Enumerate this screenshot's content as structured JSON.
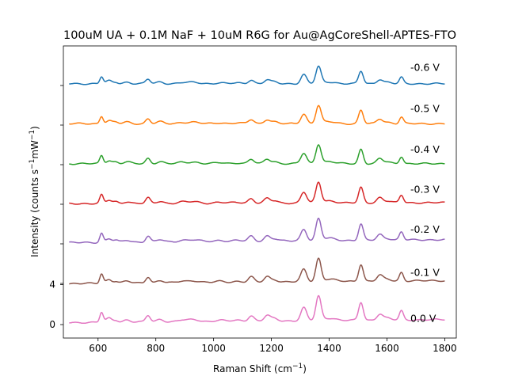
{
  "chart_data": {
    "type": "line",
    "title": "100uM UA + 0.1M NaF + 10uM R6G for Au@AgCoreShell-APTES-FTO",
    "xlabel": "Raman Shift (cm",
    "xlabel_sup": "−1",
    "xlabel_end": ")",
    "ylabel": "Intensity (counts s",
    "ylabel_sup1": "−1",
    "ylabel_mid": "mW",
    "ylabel_sup2": "−1",
    "ylabel_end": ")",
    "xlim": [
      480,
      1840
    ],
    "ylim": [
      -0.6,
      13.8
    ],
    "xticks": [
      600,
      800,
      1000,
      1200,
      1400,
      1600,
      1800
    ],
    "yticks": [
      0,
      4
    ],
    "ytick_unlabeled": [
      8,
      12
    ],
    "peaks": [
      {
        "x": 612,
        "h": 1.0,
        "w": 6
      },
      {
        "x": 638,
        "h": 0.4,
        "w": 10
      },
      {
        "x": 662,
        "h": 0.2,
        "w": 8
      },
      {
        "x": 700,
        "h": 0.22,
        "w": 12
      },
      {
        "x": 773,
        "h": 0.65,
        "w": 8
      },
      {
        "x": 815,
        "h": 0.25,
        "w": 12
      },
      {
        "x": 890,
        "h": 0.15,
        "w": 14
      },
      {
        "x": 930,
        "h": 0.2,
        "w": 20
      },
      {
        "x": 1020,
        "h": 0.12,
        "w": 16
      },
      {
        "x": 1080,
        "h": 0.1,
        "w": 16
      },
      {
        "x": 1130,
        "h": 0.55,
        "w": 10
      },
      {
        "x": 1185,
        "h": 0.55,
        "w": 10
      },
      {
        "x": 1210,
        "h": 0.25,
        "w": 12
      },
      {
        "x": 1312,
        "h": 1.3,
        "w": 10
      },
      {
        "x": 1363,
        "h": 2.4,
        "w": 9
      },
      {
        "x": 1400,
        "h": 0.25,
        "w": 22
      },
      {
        "x": 1510,
        "h": 1.8,
        "w": 8
      },
      {
        "x": 1575,
        "h": 0.6,
        "w": 10
      },
      {
        "x": 1600,
        "h": 0.2,
        "w": 14
      },
      {
        "x": 1650,
        "h": 0.9,
        "w": 7
      }
    ],
    "series": [
      {
        "name": "0.0 V",
        "offset": 0.0,
        "color": "#e377c2",
        "base_start": 0.2,
        "base_end": 0.5,
        "label_y": 0.6
      },
      {
        "name": "-0.1 V",
        "offset": 4.0,
        "color": "#8c564b",
        "base_start": 0.1,
        "base_end": 0.4,
        "label_y": 5.2
      },
      {
        "name": "-0.2 V",
        "offset": 8.0,
        "color": "#9467bd",
        "base_start": 0.2,
        "base_end": 0.5,
        "label_y": 9.5
      },
      {
        "name": "-0.3 V",
        "offset": 12.0,
        "color": "#d62728",
        "base_start": 0.1,
        "base_end": 0.2,
        "label_y": 13.5
      },
      {
        "name": "-0.4 V",
        "offset": 16.0,
        "color": "#2ca02c",
        "base_start": 0.1,
        "base_end": 0.1,
        "label_y": 17.5
      },
      {
        "name": "-0.5 V",
        "offset": 20.0,
        "color": "#ff7f0e",
        "base_start": 0.1,
        "base_end": 0.1,
        "label_y": 21.6
      },
      {
        "name": "-0.6 V",
        "offset": 24.0,
        "color": "#1f77b4",
        "base_start": 0.1,
        "base_end": 0.1,
        "label_y": 25.7
      }
    ]
  }
}
